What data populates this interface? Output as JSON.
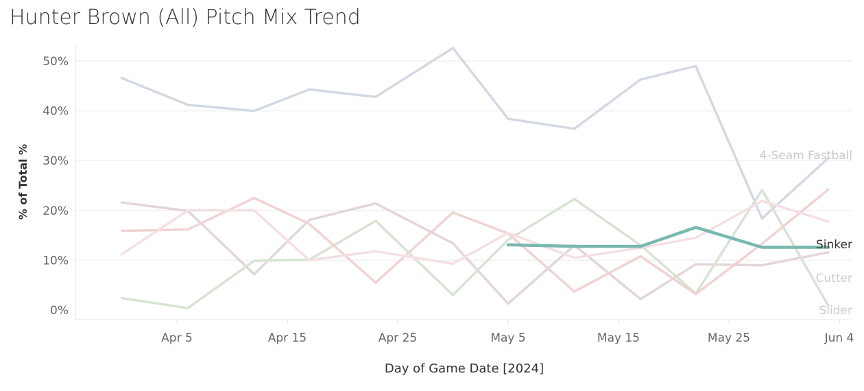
{
  "title": "Hunter Brown (All) Pitch Mix Trend",
  "chart_data": {
    "type": "line",
    "title": "Hunter Brown (All) Pitch Mix Trend",
    "xlabel": "Day of Game Date [2024]",
    "ylabel": "% of Total %",
    "x_tick_labels": [
      "Apr 5",
      "Apr 15",
      "Apr 25",
      "May 5",
      "May 15",
      "May 25",
      "Jun 4"
    ],
    "y_tick_labels": [
      "0%",
      "10%",
      "20%",
      "30%",
      "40%",
      "50%"
    ],
    "ylim": [
      0,
      55
    ],
    "grid": "horizontal",
    "legend": "inline-labels-right",
    "highlighted_series": "Sinker",
    "series": [
      {
        "name": "4-Seam Fastball",
        "color": "#d3d9e3",
        "label": "4-Seam Fastball",
        "points": [
          [
            "2024-03-31",
            46.6
          ],
          [
            "2024-04-06",
            41.2
          ],
          [
            "2024-04-12",
            40.0
          ],
          [
            "2024-04-17",
            44.3
          ],
          [
            "2024-04-23",
            42.8
          ],
          [
            "2024-04-30",
            52.6
          ],
          [
            "2024-05-05",
            38.4
          ],
          [
            "2024-05-11",
            36.4
          ],
          [
            "2024-05-17",
            46.3
          ],
          [
            "2024-05-22",
            49.0
          ],
          [
            "2024-05-28",
            18.4
          ],
          [
            "2024-06-03",
            30.5
          ]
        ]
      },
      {
        "name": "Sinker",
        "color": "#79b8ae",
        "label": "Sinker",
        "points": [
          [
            "2024-05-05",
            13.1
          ],
          [
            "2024-05-11",
            12.8
          ],
          [
            "2024-05-17",
            12.8
          ],
          [
            "2024-05-22",
            16.6
          ],
          [
            "2024-05-28",
            12.6
          ],
          [
            "2024-06-03",
            12.6
          ]
        ]
      },
      {
        "name": "Cutter",
        "color": "#e3d6da",
        "label": "Cutter",
        "points": [
          [
            "2024-03-31",
            21.6
          ],
          [
            "2024-04-06",
            19.9
          ],
          [
            "2024-04-12",
            7.2
          ],
          [
            "2024-04-17",
            18.1
          ],
          [
            "2024-04-23",
            21.4
          ],
          [
            "2024-04-30",
            13.4
          ],
          [
            "2024-05-05",
            1.3
          ],
          [
            "2024-05-11",
            13.0
          ],
          [
            "2024-05-17",
            2.2
          ],
          [
            "2024-05-22",
            9.2
          ],
          [
            "2024-05-28",
            9.0
          ],
          [
            "2024-06-03",
            11.6
          ]
        ]
      },
      {
        "name": "Slider",
        "color": "#d8e3d3",
        "label": "Slider",
        "points": [
          [
            "2024-03-31",
            2.4
          ],
          [
            "2024-04-06",
            0.4
          ],
          [
            "2024-04-12",
            9.9
          ],
          [
            "2024-04-17",
            10.1
          ],
          [
            "2024-04-23",
            17.9
          ],
          [
            "2024-04-30",
            3.0
          ],
          [
            "2024-05-05",
            14.1
          ],
          [
            "2024-05-11",
            22.3
          ],
          [
            "2024-05-17",
            13.0
          ],
          [
            "2024-05-22",
            3.3
          ],
          [
            "2024-05-28",
            24.1
          ],
          [
            "2024-06-03",
            0.9
          ]
        ]
      },
      {
        "name": "",
        "color": "#f0d3d3",
        "label": "",
        "points": [
          [
            "2024-03-31",
            15.9
          ],
          [
            "2024-04-06",
            16.2
          ],
          [
            "2024-04-12",
            22.5
          ],
          [
            "2024-04-17",
            17.3
          ],
          [
            "2024-04-23",
            5.5
          ],
          [
            "2024-04-30",
            19.6
          ],
          [
            "2024-05-05",
            15.4
          ],
          [
            "2024-05-11",
            3.7
          ],
          [
            "2024-05-17",
            10.8
          ],
          [
            "2024-05-22",
            3.2
          ],
          [
            "2024-05-28",
            13.3
          ],
          [
            "2024-06-03",
            24.2
          ]
        ]
      },
      {
        "name": "",
        "color": "#f5dfe2",
        "label": "",
        "points": [
          [
            "2024-03-31",
            11.2
          ],
          [
            "2024-04-06",
            20.0
          ],
          [
            "2024-04-12",
            20.0
          ],
          [
            "2024-04-17",
            10.0
          ],
          [
            "2024-04-23",
            11.8
          ],
          [
            "2024-04-30",
            9.3
          ],
          [
            "2024-05-05",
            15.5
          ],
          [
            "2024-05-11",
            10.5
          ],
          [
            "2024-05-17",
            12.5
          ],
          [
            "2024-05-22",
            14.5
          ],
          [
            "2024-05-28",
            21.9
          ],
          [
            "2024-06-03",
            17.8
          ]
        ]
      }
    ]
  }
}
